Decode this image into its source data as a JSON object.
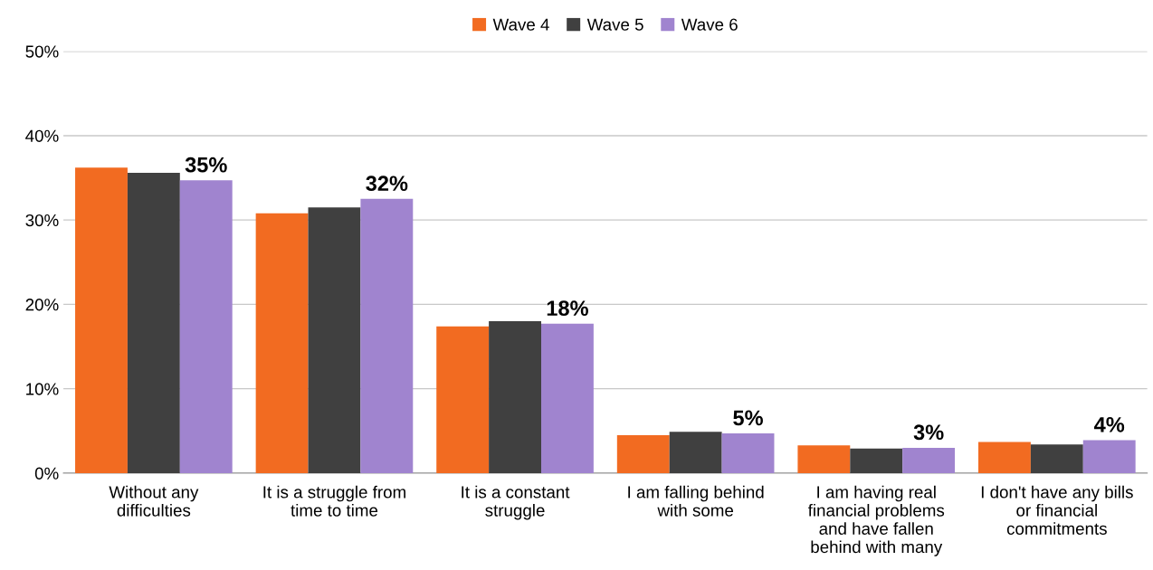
{
  "chart_data": {
    "type": "bar",
    "categories": [
      "Without any\ndifficulties",
      "It is a struggle from\ntime to time",
      "It is a constant\nstruggle",
      "I am falling behind\nwith some",
      "I am having real\nfinancial problems\nand have fallen\nbehind with many",
      "I don't have any bills\nor financial\ncommitments"
    ],
    "series": [
      {
        "name": "Wave 4",
        "color": "#f26b21",
        "values": [
          36.2,
          30.8,
          17.4,
          4.5,
          3.3,
          3.7
        ]
      },
      {
        "name": "Wave 5",
        "color": "#404040",
        "values": [
          35.6,
          31.5,
          18.0,
          4.9,
          2.9,
          3.4
        ]
      },
      {
        "name": "Wave 6",
        "color": "#a084cf",
        "values": [
          34.7,
          32.5,
          17.7,
          4.7,
          3.0,
          3.9
        ],
        "value_labels": [
          "35%",
          "32%",
          "18%",
          "5%",
          "3%",
          "4%"
        ]
      }
    ],
    "ylim": [
      0,
      50
    ],
    "yticks": [
      {
        "value": 0,
        "label": "0%"
      },
      {
        "value": 10,
        "label": "10%"
      },
      {
        "value": 20,
        "label": "20%"
      },
      {
        "value": 30,
        "label": "30%"
      },
      {
        "value": 40,
        "label": "40%"
      },
      {
        "value": 50,
        "label": "50%"
      }
    ],
    "grid": "y",
    "legend": "top"
  }
}
